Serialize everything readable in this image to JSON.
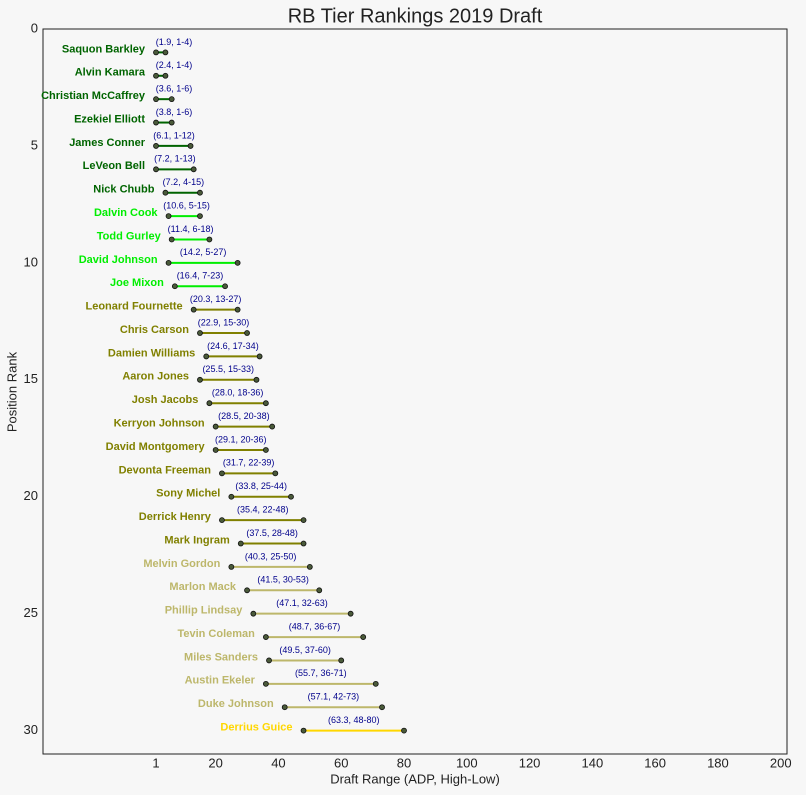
{
  "chart_data": {
    "type": "range",
    "title": "RB Tier Rankings 2019 Draft",
    "x_label": "Draft Range (ADP, High-Low)",
    "y_label": "Position Rank",
    "xlim": [
      -35,
      202
    ],
    "ylim": [
      31,
      0
    ],
    "xticks": [
      1,
      20,
      40,
      60,
      80,
      100,
      120,
      140,
      160,
      180,
      200
    ],
    "yticks": [
      0,
      5,
      10,
      15,
      20,
      25,
      30
    ],
    "rows": [
      {
        "name": "Saquon Barkley",
        "rank": 1,
        "low": 1,
        "high": 4,
        "label": "(1.9, 1-4)",
        "color": "#006400"
      },
      {
        "name": "Alvin Kamara",
        "rank": 2,
        "low": 1,
        "high": 4,
        "label": "(2.4, 1-4)",
        "color": "#006400"
      },
      {
        "name": "Christian McCaffrey",
        "rank": 3,
        "low": 1,
        "high": 6,
        "label": "(3.6, 1-6)",
        "color": "#006400"
      },
      {
        "name": "Ezekiel Elliott",
        "rank": 4,
        "low": 1,
        "high": 6,
        "label": "(3.8, 1-6)",
        "color": "#006400"
      },
      {
        "name": "James Conner",
        "rank": 5,
        "low": 1,
        "high": 12,
        "label": "(6.1, 1-12)",
        "color": "#006400"
      },
      {
        "name": "LeVeon Bell",
        "rank": 6,
        "low": 1,
        "high": 13,
        "label": "(7.2, 1-13)",
        "color": "#006400"
      },
      {
        "name": "Nick Chubb",
        "rank": 7,
        "low": 4,
        "high": 15,
        "label": "(7.2, 4-15)",
        "color": "#006400"
      },
      {
        "name": "Dalvin Cook",
        "rank": 8,
        "low": 5,
        "high": 15,
        "label": "(10.6, 5-15)",
        "color": "#00ee00"
      },
      {
        "name": "Todd Gurley",
        "rank": 9,
        "low": 6,
        "high": 18,
        "label": "(11.4, 6-18)",
        "color": "#00ee00"
      },
      {
        "name": "David Johnson",
        "rank": 10,
        "low": 5,
        "high": 27,
        "label": "(14.2, 5-27)",
        "color": "#00ee00"
      },
      {
        "name": "Joe Mixon",
        "rank": 11,
        "low": 7,
        "high": 23,
        "label": "(16.4, 7-23)",
        "color": "#00ee00"
      },
      {
        "name": "Leonard Fournette",
        "rank": 12,
        "low": 13,
        "high": 27,
        "label": "(20.3, 13-27)",
        "color": "#808000"
      },
      {
        "name": "Chris Carson",
        "rank": 13,
        "low": 15,
        "high": 30,
        "label": "(22.9, 15-30)",
        "color": "#808000"
      },
      {
        "name": "Damien Williams",
        "rank": 14,
        "low": 17,
        "high": 34,
        "label": "(24.6, 17-34)",
        "color": "#808000"
      },
      {
        "name": "Aaron Jones",
        "rank": 15,
        "low": 15,
        "high": 33,
        "label": "(25.5, 15-33)",
        "color": "#808000"
      },
      {
        "name": "Josh Jacobs",
        "rank": 16,
        "low": 18,
        "high": 36,
        "label": "(28.0, 18-36)",
        "color": "#808000"
      },
      {
        "name": "Kerryon Johnson",
        "rank": 17,
        "low": 20,
        "high": 38,
        "label": "(28.5, 20-38)",
        "color": "#808000"
      },
      {
        "name": "David Montgomery",
        "rank": 18,
        "low": 20,
        "high": 36,
        "label": "(29.1, 20-36)",
        "color": "#808000"
      },
      {
        "name": "Devonta Freeman",
        "rank": 19,
        "low": 22,
        "high": 39,
        "label": "(31.7, 22-39)",
        "color": "#808000"
      },
      {
        "name": "Sony Michel",
        "rank": 20,
        "low": 25,
        "high": 44,
        "label": "(33.8, 25-44)",
        "color": "#808000"
      },
      {
        "name": "Derrick Henry",
        "rank": 21,
        "low": 22,
        "high": 48,
        "label": "(35.4, 22-48)",
        "color": "#808000"
      },
      {
        "name": "Mark Ingram",
        "rank": 22,
        "low": 28,
        "high": 48,
        "label": "(37.5, 28-48)",
        "color": "#808000"
      },
      {
        "name": "Melvin Gordon",
        "rank": 23,
        "low": 25,
        "high": 50,
        "label": "(40.3, 25-50)",
        "color": "#bdb76b"
      },
      {
        "name": "Marlon Mack",
        "rank": 24,
        "low": 30,
        "high": 53,
        "label": "(41.5, 30-53)",
        "color": "#bdb76b"
      },
      {
        "name": "Phillip Lindsay",
        "rank": 25,
        "low": 32,
        "high": 63,
        "label": "(47.1, 32-63)",
        "color": "#bdb76b"
      },
      {
        "name": "Tevin Coleman",
        "rank": 26,
        "low": 36,
        "high": 67,
        "label": "(48.7, 36-67)",
        "color": "#bdb76b"
      },
      {
        "name": "Miles Sanders",
        "rank": 27,
        "low": 37,
        "high": 60,
        "label": "(49.5, 37-60)",
        "color": "#bdb76b"
      },
      {
        "name": "Austin Ekeler",
        "rank": 28,
        "low": 36,
        "high": 71,
        "label": "(55.7, 36-71)",
        "color": "#bdb76b"
      },
      {
        "name": "Duke Johnson",
        "rank": 29,
        "low": 42,
        "high": 73,
        "label": "(57.1, 42-73)",
        "color": "#bdb76b"
      },
      {
        "name": "Derrius Guice",
        "rank": 30,
        "low": 48,
        "high": 80,
        "label": "(63.3, 48-80)",
        "color": "#ffd700"
      }
    ]
  }
}
